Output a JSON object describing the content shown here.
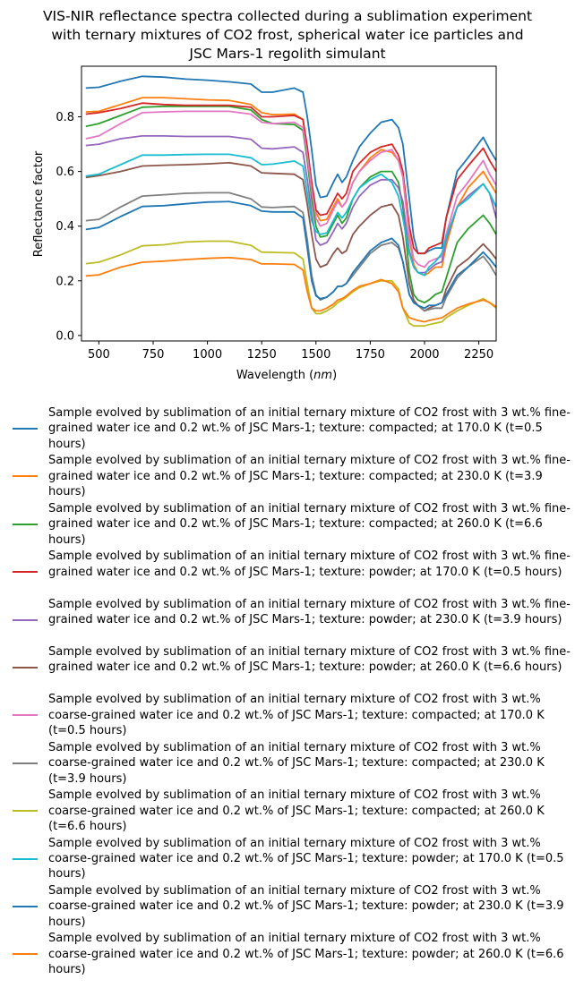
{
  "chart_data": {
    "type": "line",
    "title": "VIS-NIR reflectance spectra collected during a sublimation experiment\nwith ternary mixtures of CO2 frost, spherical water ice particles and\nJSC Mars-1 regolith simulant",
    "xlabel": "Wavelength (nm)",
    "ylabel": "Reflectance factor",
    "xlim": [
      420,
      2330
    ],
    "ylim": [
      -0.02,
      0.985
    ],
    "xticks": [
      "500",
      "750",
      "1000",
      "1250",
      "1500",
      "1750",
      "2000",
      "2250"
    ],
    "yticks": [
      "0.0",
      "0.2",
      "0.4",
      "0.6",
      "0.8"
    ],
    "grid": false,
    "legend_position": "below",
    "x": [
      440,
      500,
      600,
      700,
      800,
      900,
      1000,
      1100,
      1200,
      1250,
      1300,
      1400,
      1440,
      1460,
      1480,
      1500,
      1520,
      1550,
      1580,
      1600,
      1620,
      1640,
      1670,
      1700,
      1750,
      1800,
      1850,
      1880,
      1900,
      1930,
      1950,
      1970,
      2000,
      2020,
      2050,
      2080,
      2100,
      2150,
      2200,
      2270,
      2300,
      2330
    ],
    "series": [
      {
        "name": "Sample evolved by sublimation of an initial ternary mixture of CO2 frost with 3 wt.% fine-grained water ice and 0.2 wt.% of JSC Mars-1; texture: compacted; at 170.0 K (t=0.5 hours)",
        "color": "#1f77b4",
        "values": [
          0.905,
          0.908,
          0.93,
          0.948,
          0.945,
          0.938,
          0.934,
          0.928,
          0.92,
          0.89,
          0.89,
          0.905,
          0.89,
          0.8,
          0.68,
          0.55,
          0.505,
          0.51,
          0.56,
          0.59,
          0.56,
          0.58,
          0.64,
          0.69,
          0.74,
          0.78,
          0.79,
          0.76,
          0.7,
          0.5,
          0.36,
          0.3,
          0.3,
          0.31,
          0.32,
          0.32,
          0.43,
          0.6,
          0.65,
          0.725,
          0.68,
          0.64
        ]
      },
      {
        "name": "Sample evolved by sublimation of an initial ternary mixture of CO2 frost with 3 wt.% fine-grained water ice and 0.2 wt.% of JSC Mars-1; texture: compacted; at 230.0 K (t=3.9 hours)",
        "color": "#ff7f0e",
        "values": [
          0.818,
          0.82,
          0.845,
          0.87,
          0.87,
          0.866,
          0.862,
          0.86,
          0.845,
          0.815,
          0.808,
          0.81,
          0.79,
          0.68,
          0.55,
          0.45,
          0.42,
          0.425,
          0.47,
          0.5,
          0.47,
          0.49,
          0.56,
          0.6,
          0.65,
          0.68,
          0.67,
          0.64,
          0.58,
          0.36,
          0.26,
          0.23,
          0.22,
          0.23,
          0.25,
          0.25,
          0.33,
          0.47,
          0.54,
          0.6,
          0.56,
          0.52
        ]
      },
      {
        "name": "Sample evolved by sublimation of an initial ternary mixture of CO2 frost with 3 wt.% fine-grained water ice and 0.2 wt.% of JSC Mars-1; texture: compacted; at 260.0 K (t=6.6 hours)",
        "color": "#2ca02c",
        "values": [
          0.765,
          0.775,
          0.805,
          0.835,
          0.838,
          0.838,
          0.838,
          0.838,
          0.825,
          0.79,
          0.775,
          0.772,
          0.75,
          0.64,
          0.5,
          0.4,
          0.36,
          0.365,
          0.41,
          0.44,
          0.41,
          0.43,
          0.5,
          0.54,
          0.58,
          0.6,
          0.6,
          0.56,
          0.47,
          0.23,
          0.15,
          0.13,
          0.12,
          0.13,
          0.15,
          0.16,
          0.21,
          0.34,
          0.39,
          0.44,
          0.41,
          0.37
        ]
      },
      {
        "name": "Sample evolved by sublimation of an initial ternary mixture of CO2 frost with 3 wt.% fine-grained water ice and 0.2 wt.% of JSC Mars-1; texture: powder; at 170.0 K (t=0.5 hours)",
        "color": "#d62728",
        "values": [
          0.81,
          0.815,
          0.83,
          0.85,
          0.845,
          0.842,
          0.842,
          0.842,
          0.835,
          0.8,
          0.8,
          0.805,
          0.79,
          0.69,
          0.56,
          0.46,
          0.44,
          0.445,
          0.49,
          0.52,
          0.5,
          0.52,
          0.6,
          0.63,
          0.67,
          0.69,
          0.7,
          0.66,
          0.6,
          0.4,
          0.32,
          0.3,
          0.3,
          0.32,
          0.33,
          0.34,
          0.43,
          0.57,
          0.62,
          0.685,
          0.64,
          0.6
        ]
      },
      {
        "name": "Sample evolved by sublimation of an initial ternary mixture of CO2 frost with 3 wt.% fine-grained water ice and 0.2 wt.% of JSC Mars-1; texture: powder; at 230.0 K (t=3.9 hours)",
        "color": "#9467bd",
        "values": [
          0.695,
          0.7,
          0.72,
          0.73,
          0.73,
          0.728,
          0.728,
          0.728,
          0.718,
          0.685,
          0.683,
          0.69,
          0.67,
          0.57,
          0.45,
          0.35,
          0.33,
          0.34,
          0.38,
          0.41,
          0.39,
          0.41,
          0.47,
          0.51,
          0.55,
          0.57,
          0.57,
          0.54,
          0.49,
          0.31,
          0.25,
          0.23,
          0.23,
          0.24,
          0.26,
          0.27,
          0.35,
          0.47,
          0.51,
          0.555,
          0.52,
          0.43
        ]
      },
      {
        "name": "Sample evolved by sublimation of an initial ternary mixture of CO2 frost with 3 wt.% fine-grained water ice and 0.2 wt.% of JSC Mars-1; texture: powder; at 260.0 K (t=6.6 hours)",
        "color": "#8c564b",
        "values": [
          0.578,
          0.585,
          0.6,
          0.62,
          0.623,
          0.625,
          0.628,
          0.632,
          0.62,
          0.595,
          0.593,
          0.59,
          0.57,
          0.48,
          0.37,
          0.28,
          0.25,
          0.26,
          0.3,
          0.32,
          0.3,
          0.31,
          0.37,
          0.4,
          0.44,
          0.47,
          0.48,
          0.44,
          0.36,
          0.19,
          0.13,
          0.11,
          0.09,
          0.1,
          0.11,
          0.12,
          0.17,
          0.25,
          0.28,
          0.335,
          0.31,
          0.28
        ]
      },
      {
        "name": "Sample evolved by sublimation of an initial ternary mixture of CO2 frost with 3 wt.% coarse-grained water ice and 0.2 wt.% of JSC Mars-1; texture: compacted; at 170.0 K (t=0.5 hours)",
        "color": "#e377c2",
        "values": [
          0.72,
          0.73,
          0.775,
          0.815,
          0.818,
          0.82,
          0.82,
          0.82,
          0.81,
          0.78,
          0.775,
          0.78,
          0.76,
          0.66,
          0.53,
          0.43,
          0.4,
          0.41,
          0.46,
          0.49,
          0.47,
          0.49,
          0.56,
          0.6,
          0.64,
          0.67,
          0.68,
          0.64,
          0.58,
          0.37,
          0.28,
          0.26,
          0.25,
          0.27,
          0.28,
          0.29,
          0.37,
          0.51,
          0.56,
          0.64,
          0.59,
          0.55
        ]
      },
      {
        "name": "Sample evolved by sublimation of an initial ternary mixture of CO2 frost with 3 wt.% coarse-grained water ice and 0.2 wt.% of JSC Mars-1; texture: compacted; at 230.0 K (t=3.9 hours)",
        "color": "#7f7f7f",
        "values": [
          0.42,
          0.425,
          0.47,
          0.51,
          0.515,
          0.52,
          0.522,
          0.522,
          0.5,
          0.47,
          0.468,
          0.472,
          0.45,
          0.35,
          0.22,
          0.15,
          0.13,
          0.14,
          0.16,
          0.18,
          0.18,
          0.19,
          0.22,
          0.25,
          0.3,
          0.33,
          0.34,
          0.32,
          0.27,
          0.15,
          0.12,
          0.11,
          0.09,
          0.095,
          0.1,
          0.1,
          0.14,
          0.21,
          0.25,
          0.29,
          0.26,
          0.22
        ]
      },
      {
        "name": "Sample evolved by sublimation of an initial ternary mixture of CO2 frost with 3 wt.% coarse-grained water ice and 0.2 wt.% of JSC Mars-1; texture: compacted; at 260.0 K (t=6.6 hours)",
        "color": "#bcbd22",
        "values": [
          0.263,
          0.268,
          0.295,
          0.328,
          0.332,
          0.342,
          0.345,
          0.345,
          0.33,
          0.305,
          0.304,
          0.302,
          0.28,
          0.19,
          0.1,
          0.08,
          0.08,
          0.09,
          0.105,
          0.12,
          0.13,
          0.14,
          0.16,
          0.175,
          0.19,
          0.2,
          0.2,
          0.17,
          0.1,
          0.045,
          0.035,
          0.035,
          0.035,
          0.04,
          0.045,
          0.05,
          0.065,
          0.09,
          0.11,
          0.135,
          0.12,
          0.1
        ]
      },
      {
        "name": "Sample evolved by sublimation of an initial ternary mixture of CO2 frost with 3 wt.% coarse-grained water ice and 0.2 wt.% of JSC Mars-1; texture: powder; at 170.0 K (t=0.5 hours)",
        "color": "#17becf",
        "values": [
          0.583,
          0.59,
          0.625,
          0.66,
          0.66,
          0.662,
          0.663,
          0.663,
          0.65,
          0.625,
          0.627,
          0.638,
          0.62,
          0.52,
          0.42,
          0.38,
          0.37,
          0.375,
          0.42,
          0.45,
          0.43,
          0.45,
          0.5,
          0.54,
          0.57,
          0.59,
          0.56,
          0.51,
          0.43,
          0.3,
          0.25,
          0.23,
          0.22,
          0.25,
          0.27,
          0.3,
          0.36,
          0.47,
          0.5,
          0.555,
          0.52,
          0.47
        ]
      },
      {
        "name": "Sample evolved by sublimation of an initial ternary mixture of CO2 frost with 3 wt.% coarse-grained water ice and 0.2 wt.% of JSC Mars-1; texture: powder; at 230.0 K (t=3.9 hours)",
        "color": "#1f77b4",
        "values": [
          0.388,
          0.395,
          0.435,
          0.472,
          0.475,
          0.482,
          0.488,
          0.49,
          0.475,
          0.455,
          0.452,
          0.452,
          0.43,
          0.32,
          0.2,
          0.145,
          0.135,
          0.14,
          0.16,
          0.18,
          0.18,
          0.19,
          0.23,
          0.26,
          0.31,
          0.34,
          0.355,
          0.33,
          0.27,
          0.15,
          0.12,
          0.11,
          0.1,
          0.11,
          0.11,
          0.12,
          0.15,
          0.22,
          0.25,
          0.305,
          0.28,
          0.25
        ]
      },
      {
        "name": "Sample evolved by sublimation of an initial ternary mixture of CO2 frost with 3 wt.% coarse-grained water ice and 0.2 wt.% of JSC Mars-1; texture: powder; at 260.0 K (t=6.6 hours)",
        "color": "#ff7f0e",
        "values": [
          0.218,
          0.222,
          0.25,
          0.268,
          0.272,
          0.278,
          0.282,
          0.285,
          0.278,
          0.262,
          0.262,
          0.26,
          0.24,
          0.16,
          0.1,
          0.09,
          0.09,
          0.1,
          0.115,
          0.13,
          0.135,
          0.145,
          0.165,
          0.18,
          0.19,
          0.205,
          0.19,
          0.16,
          0.1,
          0.065,
          0.06,
          0.055,
          0.05,
          0.055,
          0.06,
          0.065,
          0.075,
          0.1,
          0.115,
          0.13,
          0.12,
          0.105
        ]
      }
    ]
  }
}
